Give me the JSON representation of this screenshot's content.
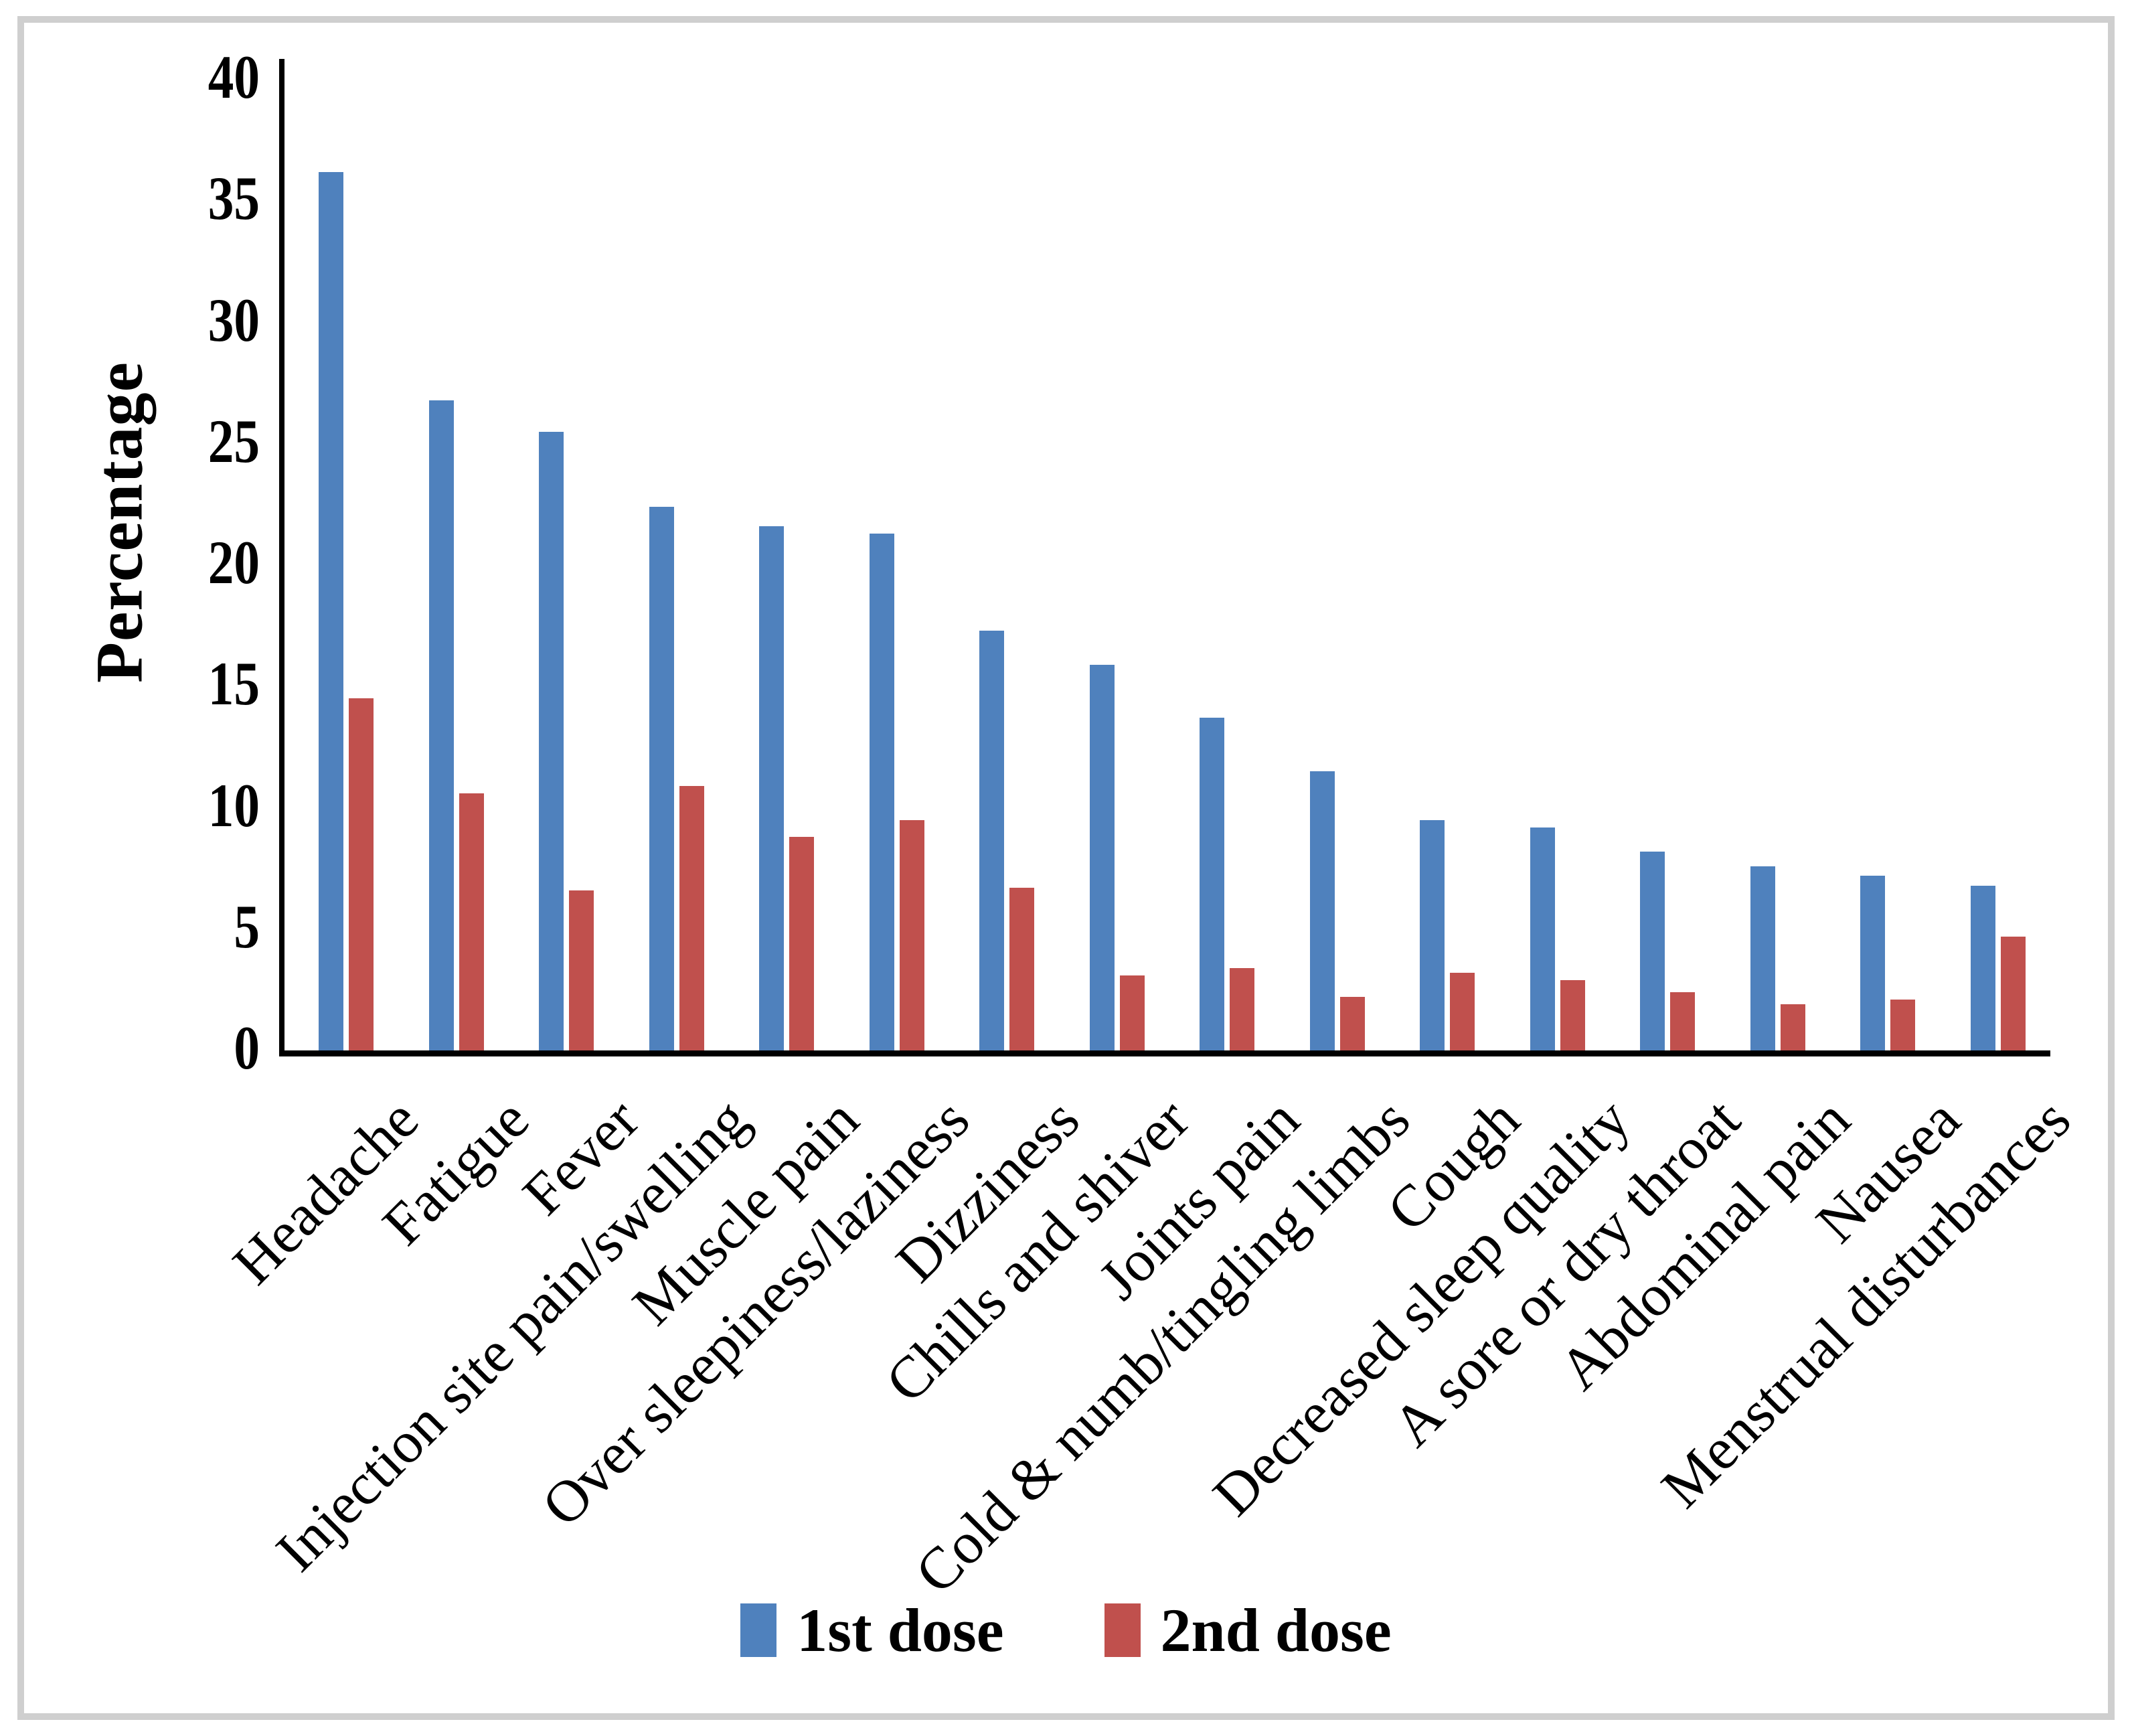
{
  "figure": {
    "border_color": "#cfcfcf",
    "background": "#ffffff"
  },
  "axes": {
    "ylabel": "Percentage",
    "y_tick_labels": [
      "0",
      "5",
      "10",
      "15",
      "20",
      "25",
      "30",
      "35",
      "40"
    ],
    "axis_color": "#000000"
  },
  "legend": {
    "items": [
      {
        "label": "1st dose",
        "color": "#4F81BD",
        "swatch": "legend-swatch-1st-dose"
      },
      {
        "label": "2nd dose",
        "color": "#C0504D",
        "swatch": "legend-swatch-2nd-dose"
      }
    ]
  },
  "chart_data": {
    "type": "bar",
    "title": "",
    "xlabel": "",
    "ylabel": "Percentage",
    "ylim": [
      0,
      40
    ],
    "y_ticks": [
      0,
      5,
      10,
      15,
      20,
      25,
      30,
      35,
      40
    ],
    "grid": false,
    "legend_position": "bottom",
    "categories": [
      "Headache",
      "Fatigue",
      "Fever",
      "Injection site pain/swelling",
      "Muscle pain",
      "Over sleepiness/laziness",
      "Dizziness",
      "Chills and shiver",
      "Joints pain",
      "Cold & numb/tingling limbs",
      "Cough",
      "Decreased sleep quality",
      "A sore or dry throat",
      "Abdominal pain",
      "Nausea",
      "Menstrual disturbances"
    ],
    "series": [
      {
        "name": "1st dose",
        "color": "#4F81BD",
        "values": [
          36.2,
          26.8,
          25.5,
          22.4,
          21.6,
          21.3,
          17.3,
          15.9,
          13.7,
          11.5,
          9.5,
          9.2,
          8.2,
          7.6,
          7.2,
          6.8
        ]
      },
      {
        "name": "2nd dose",
        "color": "#C0504D",
        "values": [
          14.5,
          10.6,
          6.6,
          10.9,
          8.8,
          9.5,
          6.7,
          3.1,
          3.4,
          2.2,
          3.2,
          2.9,
          2.4,
          1.9,
          2.1,
          4.7
        ]
      }
    ]
  }
}
